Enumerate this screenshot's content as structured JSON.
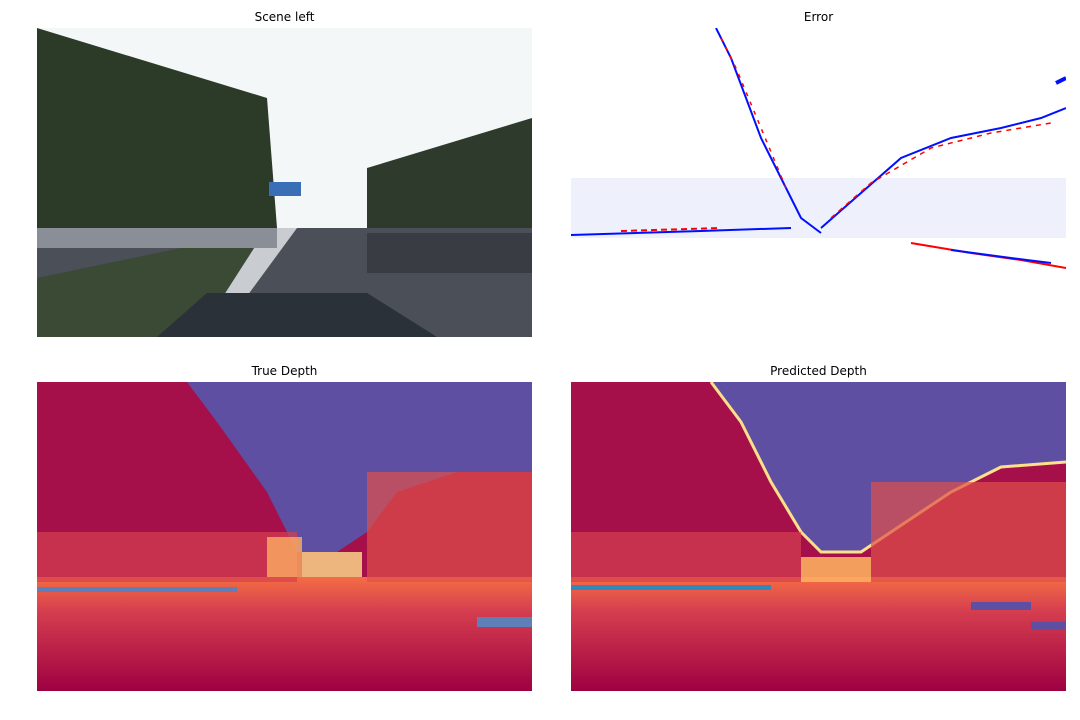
{
  "panels": [
    {
      "title": "Scene left",
      "kind": "rgb-photo"
    },
    {
      "title": "Error",
      "kind": "error-map",
      "colormap": [
        "#0000ff",
        "#ffffff",
        "#ff0000"
      ]
    },
    {
      "title": "True Depth",
      "kind": "depth-map",
      "colormap": [
        "#9e0142",
        "#f46d43",
        "#fee08b",
        "#abdda4",
        "#5e4fa2"
      ]
    },
    {
      "title": "Predicted Depth",
      "kind": "depth-map",
      "colormap": [
        "#9e0142",
        "#f46d43",
        "#fee08b",
        "#abdda4",
        "#5e4fa2"
      ]
    }
  ]
}
